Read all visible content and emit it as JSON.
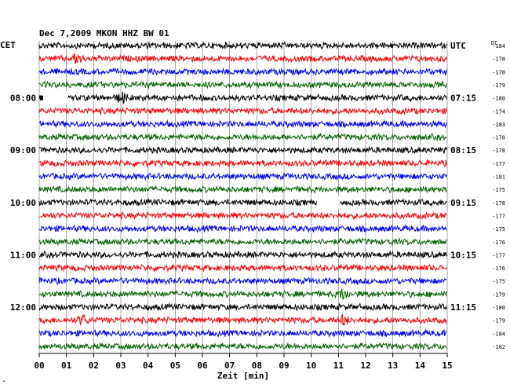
{
  "chart_data": {
    "type": "line",
    "title": "Dec 7,2009   MKON HHZ BW 01",
    "left_timezone": "CET",
    "right_timezone": "UTC",
    "dc_header": "DC",
    "xlabel": "Zeit [min]",
    "xlim": [
      0,
      15
    ],
    "x_ticks": [
      "00",
      "01",
      "02",
      "03",
      "04",
      "05",
      "06",
      "07",
      "08",
      "09",
      "10",
      "11",
      "12",
      "13",
      "14",
      "15"
    ],
    "grid": "vertical lines each minute",
    "trace_colors": [
      "#000000",
      "#ff0000",
      "#0000ff",
      "#006400"
    ],
    "left_hour_labels": [
      {
        "row": 4,
        "label": "08:00"
      },
      {
        "row": 8,
        "label": "09:00"
      },
      {
        "row": 12,
        "label": "10:00"
      },
      {
        "row": 16,
        "label": "11:00"
      },
      {
        "row": 20,
        "label": "12:00"
      }
    ],
    "right_hour_labels": [
      {
        "row": 0,
        "label": "UTC"
      },
      {
        "row": 4,
        "label": "07:15"
      },
      {
        "row": 8,
        "label": "08:15"
      },
      {
        "row": 12,
        "label": "09:15"
      },
      {
        "row": 16,
        "label": "10:15"
      },
      {
        "row": 20,
        "label": "11:15"
      }
    ],
    "dc_offsets": [
      -184,
      -178,
      -178,
      -179,
      -180,
      -174,
      -183,
      -178,
      -178,
      -177,
      -181,
      -175,
      -178,
      -177,
      -175,
      -176,
      -177,
      -176,
      -175,
      -179,
      -180,
      -179,
      -184,
      -182
    ],
    "gaps": [
      {
        "row": 4,
        "x_start_min": 0.1,
        "x_end_min": 1.05
      },
      {
        "row": 12,
        "x_start_min": 10.2,
        "x_end_min": 11.05
      }
    ],
    "events": [
      {
        "row": 1,
        "x_min": 1.4
      },
      {
        "row": 4,
        "x_min": 3.05
      },
      {
        "row": 19,
        "x_min": 11.2
      },
      {
        "row": 21,
        "x_min": 1.6
      },
      {
        "row": 21,
        "x_min": 11.2
      }
    ]
  },
  "footer": {
    "corner_mark": "^"
  }
}
